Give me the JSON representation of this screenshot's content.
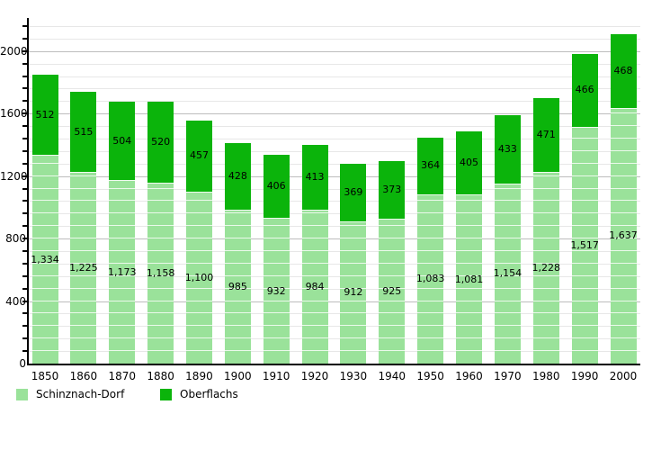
{
  "chart_data": {
    "type": "bar",
    "stacked": true,
    "title": "",
    "xlabel": "",
    "ylabel": "",
    "categories": [
      "1850",
      "1860",
      "1870",
      "1880",
      "1890",
      "1900",
      "1910",
      "1920",
      "1930",
      "1940",
      "1950",
      "1960",
      "1970",
      "1980",
      "1990",
      "2000"
    ],
    "series": [
      {
        "name": "Schinznach-Dorf",
        "color": "#9ae29a",
        "values": [
          1334,
          1225,
          1173,
          1158,
          1100,
          985,
          932,
          984,
          912,
          925,
          1083,
          1081,
          1154,
          1228,
          1517,
          1637
        ]
      },
      {
        "name": "Oberflachs",
        "color": "#0bb40b",
        "values": [
          512,
          515,
          504,
          520,
          457,
          428,
          406,
          413,
          369,
          373,
          364,
          405,
          433,
          471,
          466,
          468
        ]
      }
    ],
    "ylim": [
      0,
      2200
    ],
    "ytick_major_step": 400,
    "ytick_minor_step": 80,
    "ytick_labels": [
      "0",
      "400",
      "800",
      "1200",
      "1600",
      "2000"
    ],
    "grid": "on",
    "legend_position": "bottom-left",
    "value_labels": "inside-segments"
  },
  "legend": {
    "items": [
      {
        "label": "Schinznach-Dorf",
        "color": "#9ae29a"
      },
      {
        "label": "Oberflachs",
        "color": "#0bb40b"
      }
    ]
  },
  "colors": {
    "bar_light": "#9ae29a",
    "bar_dark": "#0bb40b",
    "grid_minor": "#e7e7e7",
    "grid_major": "#bdbdbd",
    "axis": "#000000",
    "background": "#ffffff",
    "label_text": "#000000"
  }
}
